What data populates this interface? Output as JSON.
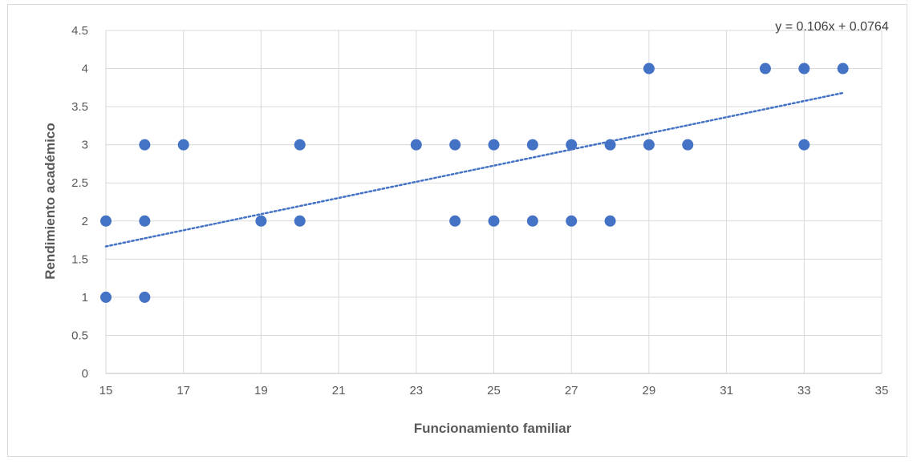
{
  "chart_data": {
    "type": "scatter",
    "title": "",
    "xlabel": "Funcionamiento familiar",
    "ylabel": "Rendimiento académico",
    "xlim": [
      15,
      35
    ],
    "ylim": [
      0,
      4.5
    ],
    "x_ticks": [
      "15",
      "17",
      "19",
      "21",
      "23",
      "25",
      "27",
      "29",
      "31",
      "33",
      "35"
    ],
    "y_ticks": [
      "0",
      "0.5",
      "1",
      "1.5",
      "2",
      "2.5",
      "3",
      "3.5",
      "4",
      "4.5"
    ],
    "grid": true,
    "series": [
      {
        "marker_color": "#4472c4",
        "points": [
          [
            15,
            2
          ],
          [
            15,
            1
          ],
          [
            16,
            3
          ],
          [
            16,
            2
          ],
          [
            16,
            1
          ],
          [
            17,
            3
          ],
          [
            19,
            2
          ],
          [
            20,
            3
          ],
          [
            20,
            2
          ],
          [
            23,
            3
          ],
          [
            24,
            3
          ],
          [
            24,
            2
          ],
          [
            25,
            3
          ],
          [
            25,
            2
          ],
          [
            26,
            3
          ],
          [
            26,
            2
          ],
          [
            27,
            3
          ],
          [
            27,
            2
          ],
          [
            28,
            3
          ],
          [
            28,
            2
          ],
          [
            29,
            4
          ],
          [
            29,
            3
          ],
          [
            30,
            3
          ],
          [
            32,
            4
          ],
          [
            33,
            4
          ],
          [
            33,
            3
          ],
          [
            34,
            4
          ]
        ]
      }
    ],
    "trendline": {
      "type": "linear",
      "slope": 0.106,
      "intercept": 0.0764,
      "x_range": [
        15,
        34
      ],
      "color": "#4472c4",
      "style": "dotted",
      "equation_label": "y = 0.106x + 0.0764"
    }
  }
}
